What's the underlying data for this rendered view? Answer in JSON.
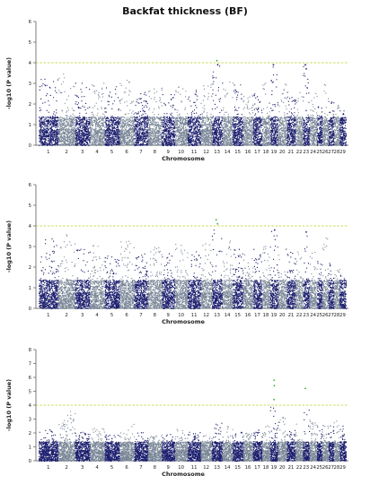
{
  "figure": {
    "title": "Backfat thickness (BF)"
  },
  "colors": {
    "odd_chromosomes": "#1c1f6e",
    "even_chromosomes": "#7b8898",
    "threshold_line": "#b6d11a",
    "significant_points": "#2eaa3c"
  },
  "chart_data": [
    {
      "type": "scatter",
      "subtype": "manhattan",
      "title": "",
      "xlabel": "Chromosome",
      "ylabel": "-log10 (P value)",
      "ylim": [
        0,
        6
      ],
      "yticks": [
        0,
        1,
        2,
        3,
        4,
        5,
        6
      ],
      "threshold": 4,
      "categories": [
        "1",
        "2",
        "3",
        "4",
        "5",
        "6",
        "7",
        "8",
        "9",
        "10",
        "11",
        "12",
        "13",
        "14",
        "15",
        "16",
        "17",
        "18",
        "19",
        "20",
        "21",
        "22",
        "23",
        "24",
        "25",
        "26",
        "27",
        "28",
        "29"
      ],
      "peak_by_chromosome": [
        3.3,
        3.5,
        3.1,
        3.2,
        2.9,
        3.2,
        2.6,
        2.9,
        2.6,
        2.9,
        2.7,
        3.4,
        4.1,
        3.3,
        3.0,
        2.5,
        2.6,
        3.2,
        3.9,
        3.1,
        2.6,
        2.9,
        3.9,
        2.6,
        2.4,
        3.2,
        2.2,
        2.0,
        1.7
      ],
      "top_hits": [
        {
          "chromosome": "13",
          "y": 4.1
        },
        {
          "chromosome": "13",
          "y": 3.9
        },
        {
          "chromosome": "19",
          "y": 3.9
        },
        {
          "chromosome": "23",
          "y": 3.9
        },
        {
          "chromosome": "23",
          "y": 3.7
        }
      ],
      "grid": false,
      "legend": "none"
    },
    {
      "type": "scatter",
      "subtype": "manhattan",
      "title": "",
      "xlabel": "Chromosome",
      "ylabel": "-log10 (P value)",
      "ylim": [
        0,
        6
      ],
      "yticks": [
        0,
        1,
        2,
        3,
        4,
        5,
        6
      ],
      "threshold": 4,
      "categories": [
        "1",
        "2",
        "3",
        "4",
        "5",
        "6",
        "7",
        "8",
        "9",
        "10",
        "11",
        "12",
        "13",
        "14",
        "15",
        "16",
        "17",
        "18",
        "19",
        "20",
        "21",
        "22",
        "23",
        "24",
        "25",
        "26",
        "27",
        "28",
        "29"
      ],
      "peak_by_chromosome": [
        3.5,
        3.6,
        3.0,
        3.1,
        2.7,
        3.3,
        2.7,
        3.0,
        2.7,
        3.2,
        2.8,
        3.2,
        4.3,
        3.3,
        2.9,
        2.7,
        2.9,
        3.1,
        3.8,
        3.0,
        2.8,
        2.9,
        3.7,
        2.8,
        2.4,
        3.5,
        2.3,
        2.0,
        1.7
      ],
      "top_hits": [
        {
          "chromosome": "13",
          "y": 4.3
        },
        {
          "chromosome": "13",
          "y": 4.1
        },
        {
          "chromosome": "19",
          "y": 3.8
        },
        {
          "chromosome": "23",
          "y": 3.7
        }
      ],
      "grid": false,
      "legend": "none"
    },
    {
      "type": "scatter",
      "subtype": "manhattan",
      "title": "",
      "xlabel": "Chromosome",
      "ylabel": "-log10 (P value)",
      "ylim": [
        0,
        8
      ],
      "yticks": [
        0,
        1,
        2,
        3,
        4,
        5,
        6,
        7,
        8
      ],
      "threshold": 4,
      "categories": [
        "1",
        "2",
        "3",
        "4",
        "5",
        "6",
        "7",
        "8",
        "9",
        "10",
        "11",
        "12",
        "13",
        "14",
        "15",
        "16",
        "17",
        "18",
        "19",
        "20",
        "21",
        "22",
        "23",
        "24",
        "25",
        "26",
        "27",
        "28",
        "29"
      ],
      "peak_by_chromosome": [
        2.3,
        3.6,
        2.1,
        2.5,
        2.0,
        3.0,
        2.2,
        1.9,
        2.0,
        2.3,
        2.1,
        2.0,
        2.8,
        2.5,
        2.2,
        2.1,
        2.3,
        2.6,
        5.8,
        3.1,
        2.4,
        2.7,
        5.2,
        3.0,
        2.5,
        2.6,
        2.6,
        2.9,
        3.0
      ],
      "top_hits": [
        {
          "chromosome": "19",
          "y": 5.8
        },
        {
          "chromosome": "19",
          "y": 5.4
        },
        {
          "chromosome": "19",
          "y": 4.4
        },
        {
          "chromosome": "23",
          "y": 5.2
        },
        {
          "chromosome": "20",
          "y": 3.1
        }
      ],
      "grid": false,
      "legend": "none"
    }
  ]
}
